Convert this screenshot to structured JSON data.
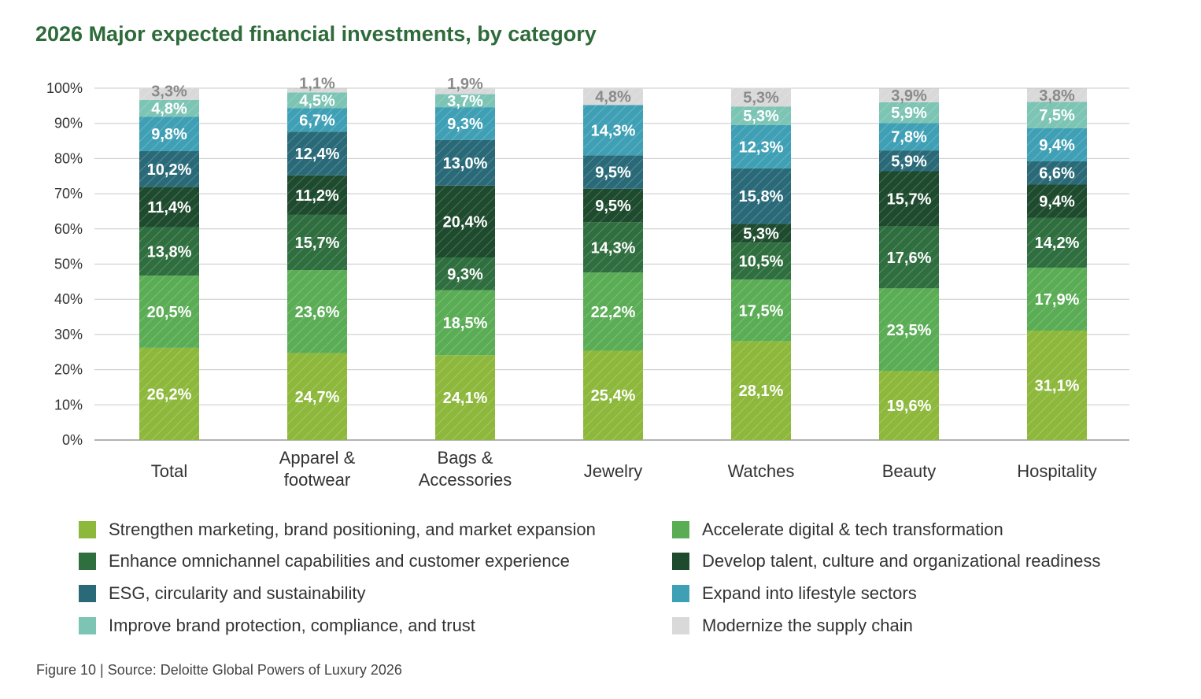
{
  "chart_data": {
    "type": "bar",
    "stacked": true,
    "title": "2026 Major expected financial investments, by category",
    "xlabel": "",
    "ylabel": "",
    "ylim": [
      0,
      100
    ],
    "yticks": [
      "0%",
      "10%",
      "20%",
      "30%",
      "40%",
      "50%",
      "60%",
      "70%",
      "80%",
      "90%",
      "100%"
    ],
    "grid": true,
    "legend_position": "bottom",
    "categories": [
      [
        "Total"
      ],
      [
        "Apparel &",
        "footwear"
      ],
      [
        "Bags &",
        "Accessories"
      ],
      [
        "Jewelry"
      ],
      [
        "Watches"
      ],
      [
        "Beauty"
      ],
      [
        "Hospitality"
      ]
    ],
    "series": [
      {
        "name": "Strengthen marketing, brand positioning, and market expansion",
        "color": "#8db83c",
        "label_color": "#ffffff",
        "values": [
          26.2,
          24.7,
          24.1,
          25.4,
          28.1,
          19.6,
          31.1
        ]
      },
      {
        "name": "Accelerate digital & tech transformation",
        "color": "#5aad55",
        "label_color": "#ffffff",
        "values": [
          20.5,
          23.6,
          18.5,
          22.2,
          17.5,
          23.5,
          17.9
        ]
      },
      {
        "name": "Enhance omnichannel capabilities and customer experience",
        "color": "#2f6e3e",
        "label_color": "#ffffff",
        "values": [
          13.8,
          15.7,
          9.3,
          14.3,
          10.5,
          17.6,
          14.2
        ]
      },
      {
        "name": "Develop talent, culture and organizational readiness",
        "color": "#1e4a2e",
        "label_color": "#ffffff",
        "values": [
          11.4,
          11.2,
          20.4,
          9.5,
          5.3,
          15.7,
          9.4
        ]
      },
      {
        "name": "ESG, circularity and sustainability",
        "color": "#2a6a78",
        "label_color": "#ffffff",
        "values": [
          10.2,
          12.4,
          13.0,
          9.5,
          15.8,
          5.9,
          6.6
        ]
      },
      {
        "name": "Expand into lifestyle sectors",
        "color": "#3fa0b5",
        "label_color": "#ffffff",
        "values": [
          9.8,
          6.7,
          9.3,
          14.3,
          12.3,
          7.8,
          9.4
        ]
      },
      {
        "name": "Improve brand protection, compliance, and trust",
        "color": "#7cc4b4",
        "label_color": "#ffffff",
        "values": [
          4.8,
          4.5,
          3.7,
          0,
          5.3,
          5.9,
          7.5
        ]
      },
      {
        "name": "Modernize the supply chain",
        "color": "#d9d9d9",
        "label_color": "#8a8a8a",
        "values": [
          3.3,
          1.1,
          1.9,
          4.8,
          5.3,
          3.9,
          3.8
        ]
      }
    ]
  },
  "footnote": "Figure 10 | Source: Deloitte Global Powers of Luxury 2026"
}
